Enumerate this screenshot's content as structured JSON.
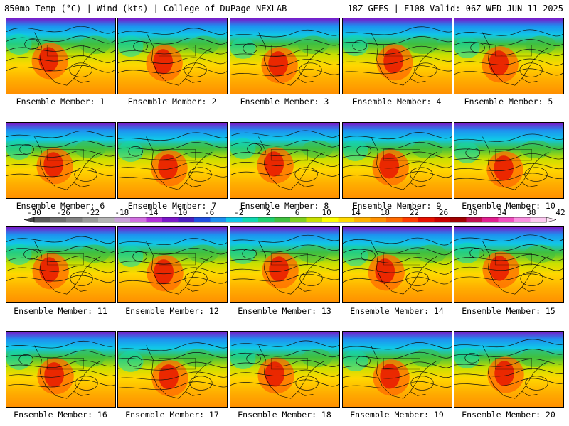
{
  "header": {
    "left_title": "850mb Temp (°C) | Wind (kts) | College of DuPage NEXLAB",
    "right_title": "18Z GEFS | F108 Valid: 06Z WED JUN 11 2025"
  },
  "members": [
    {
      "label": "Ensemble Member: 1"
    },
    {
      "label": "Ensemble Member: 2"
    },
    {
      "label": "Ensemble Member: 3"
    },
    {
      "label": "Ensemble Member: 4"
    },
    {
      "label": "Ensemble Member: 5"
    },
    {
      "label": "Ensemble Member: 6"
    },
    {
      "label": "Ensemble Member: 7"
    },
    {
      "label": "Ensemble Member: 8"
    },
    {
      "label": "Ensemble Member: 9"
    },
    {
      "label": "Ensemble Member: 10"
    },
    {
      "label": "Ensemble Member: 11"
    },
    {
      "label": "Ensemble Member: 12"
    },
    {
      "label": "Ensemble Member: 13"
    },
    {
      "label": "Ensemble Member: 14"
    },
    {
      "label": "Ensemble Member: 15"
    },
    {
      "label": "Ensemble Member: 16"
    },
    {
      "label": "Ensemble Member: 17"
    },
    {
      "label": "Ensemble Member: 18"
    },
    {
      "label": "Ensemble Member: 19"
    },
    {
      "label": "Ensemble Member: 20"
    }
  ],
  "colorbar": {
    "ticks": [
      "-30",
      "-26",
      "-22",
      "-18",
      "-14",
      "-10",
      "-6",
      "-2",
      "2",
      "6",
      "10",
      "14",
      "18",
      "22",
      "26",
      "30",
      "34",
      "38",
      "42"
    ],
    "colors": [
      "#5a5a5a",
      "#6e6e6e",
      "#828282",
      "#9a9a9a",
      "#b4b4b4",
      "#c8a0d8",
      "#d070e0",
      "#b030d8",
      "#7a18c8",
      "#4a20c0",
      "#1e50e0",
      "#1e90f0",
      "#10c8e8",
      "#10d8b0",
      "#20d070",
      "#40c040",
      "#80d020",
      "#c8e000",
      "#ffff00",
      "#ffd800",
      "#ffb000",
      "#ff9000",
      "#ff6a00",
      "#ff3c00",
      "#e61000",
      "#c80000",
      "#a00000",
      "#c01050",
      "#e02090",
      "#f050c0",
      "#f890e0",
      "#fcc8f0"
    ]
  }
}
